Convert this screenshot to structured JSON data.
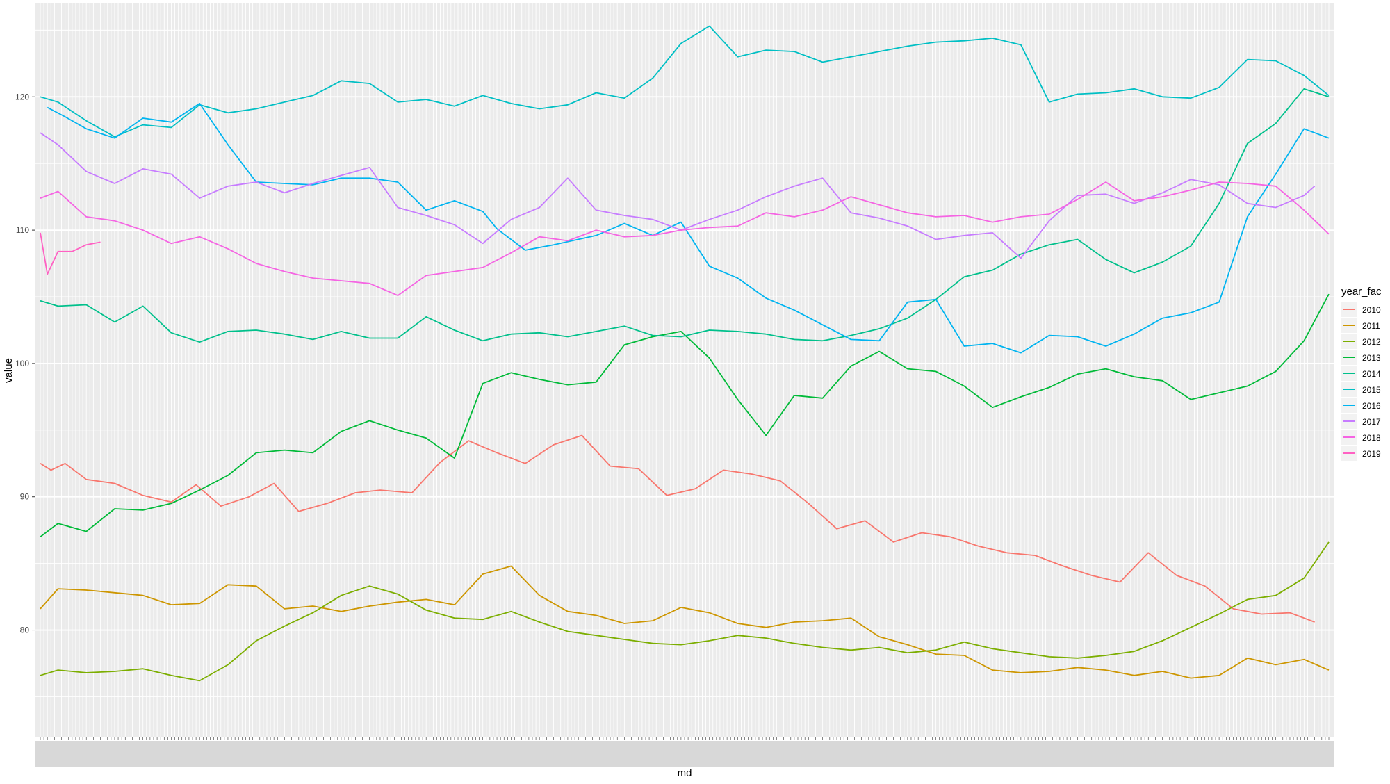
{
  "chart_data": {
    "type": "line",
    "xlabel": "md",
    "ylabel": "value",
    "x_ticks_note": "one tick per calendar month-day (01-01 .. 12-31); labels rendered vertically and unreadable",
    "x_range": [
      "01-01",
      "12-31"
    ],
    "ylim": [
      72,
      127
    ],
    "y_ticks": [
      80,
      90,
      100,
      110,
      120
    ],
    "grid": true,
    "legend": {
      "title": "year_fac",
      "position": "right"
    },
    "series": [
      {
        "name": "2010",
        "color": "#F8766D",
        "x": [
          1,
          4,
          8,
          14,
          22,
          30,
          38,
          45,
          52,
          60,
          67,
          74,
          82,
          90,
          97,
          106,
          114,
          122,
          130,
          138,
          146,
          154,
          162,
          170,
          178,
          186,
          194,
          202,
          210,
          218,
          226,
          234,
          242,
          250,
          258,
          266,
          274,
          282,
          290,
          298,
          306,
          314,
          322,
          330,
          338,
          346,
          354,
          361
        ],
        "y": [
          92.5,
          92.0,
          92.5,
          91.3,
          91.0,
          90.1,
          89.6,
          90.9,
          89.3,
          90.0,
          91.0,
          88.9,
          89.5,
          90.3,
          90.5,
          90.3,
          92.6,
          94.2,
          93.3,
          92.5,
          93.9,
          94.6,
          92.3,
          92.1,
          90.1,
          90.6,
          92.0,
          91.7,
          91.2,
          89.5,
          87.6,
          88.2,
          86.6,
          87.3,
          87.0,
          86.3,
          85.8,
          85.6,
          84.8,
          84.1,
          83.6,
          85.8,
          84.1,
          83.3,
          81.6,
          81.2,
          81.3,
          80.6
        ]
      },
      {
        "name": "2011",
        "color": "#CD9600",
        "x": [
          1,
          6,
          14,
          22,
          30,
          38,
          46,
          54,
          62,
          70,
          78,
          86,
          94,
          102,
          110,
          118,
          126,
          134,
          142,
          150,
          158,
          166,
          174,
          182,
          190,
          198,
          206,
          214,
          222,
          230,
          238,
          246,
          254,
          262,
          270,
          278,
          286,
          294,
          302,
          310,
          318,
          326,
          334,
          342,
          350,
          358,
          365
        ],
        "y": [
          81.6,
          83.1,
          83.0,
          82.8,
          82.6,
          81.9,
          82.0,
          83.4,
          83.3,
          81.6,
          81.8,
          81.4,
          81.8,
          82.1,
          82.3,
          81.9,
          84.2,
          84.8,
          82.6,
          81.4,
          81.1,
          80.5,
          80.7,
          81.7,
          81.3,
          80.5,
          80.2,
          80.6,
          80.7,
          80.9,
          79.5,
          78.9,
          78.2,
          78.1,
          77.0,
          76.8,
          76.9,
          77.2,
          77.0,
          76.6,
          76.9,
          76.4,
          76.6,
          77.9,
          77.4,
          77.8,
          77.0
        ]
      },
      {
        "name": "2012",
        "color": "#7CAE00",
        "x": [
          1,
          6,
          14,
          22,
          30,
          38,
          46,
          54,
          62,
          70,
          78,
          86,
          94,
          102,
          110,
          118,
          126,
          134,
          142,
          150,
          158,
          166,
          174,
          182,
          190,
          198,
          206,
          214,
          222,
          230,
          238,
          246,
          254,
          262,
          270,
          278,
          286,
          294,
          302,
          310,
          318,
          326,
          334,
          342,
          350,
          358,
          365
        ],
        "y": [
          76.6,
          77.0,
          76.8,
          76.9,
          77.1,
          76.6,
          76.2,
          77.4,
          79.2,
          80.3,
          81.3,
          82.6,
          83.3,
          82.7,
          81.5,
          80.9,
          80.8,
          81.4,
          80.6,
          79.9,
          79.6,
          79.3,
          79.0,
          78.9,
          79.2,
          79.6,
          79.4,
          79.0,
          78.7,
          78.5,
          78.7,
          78.3,
          78.5,
          79.1,
          78.6,
          78.3,
          78.0,
          77.9,
          78.1,
          78.4,
          79.2,
          80.2,
          81.2,
          82.3,
          82.6,
          83.9,
          86.6
        ]
      },
      {
        "name": "2013",
        "color": "#00BA38",
        "x": [
          1,
          6,
          14,
          22,
          30,
          38,
          46,
          54,
          62,
          70,
          78,
          86,
          94,
          102,
          110,
          118,
          126,
          134,
          142,
          150,
          158,
          166,
          174,
          182,
          190,
          198,
          206,
          214,
          222,
          230,
          238,
          246,
          254,
          262,
          270,
          278,
          286,
          294,
          302,
          310,
          318,
          326,
          334,
          342,
          350,
          358,
          365
        ],
        "y": [
          87.0,
          88.0,
          87.4,
          89.1,
          89.0,
          89.5,
          90.5,
          91.6,
          93.3,
          93.5,
          93.3,
          94.9,
          95.7,
          95.0,
          94.4,
          92.9,
          98.5,
          99.3,
          98.8,
          98.4,
          98.6,
          101.4,
          102.0,
          102.4,
          100.4,
          97.3,
          94.6,
          97.6,
          97.4,
          99.8,
          100.9,
          99.6,
          99.4,
          98.3,
          96.7,
          97.5,
          98.2,
          99.2,
          99.6,
          99.0,
          98.7,
          97.3,
          97.8,
          98.3,
          99.4,
          101.7,
          105.2
        ]
      },
      {
        "name": "2014",
        "color": "#00C08B",
        "x": [
          1,
          6,
          14,
          22,
          30,
          38,
          46,
          54,
          62,
          70,
          78,
          86,
          94,
          102,
          110,
          118,
          126,
          134,
          142,
          150,
          158,
          166,
          174,
          182,
          190,
          198,
          206,
          214,
          222,
          230,
          238,
          246,
          254,
          262,
          270,
          278,
          286,
          294,
          302,
          310,
          318,
          326,
          334,
          342,
          350,
          358,
          365
        ],
        "y": [
          104.7,
          104.3,
          104.4,
          103.1,
          104.3,
          102.3,
          101.6,
          102.4,
          102.5,
          102.2,
          101.8,
          102.4,
          101.9,
          101.9,
          103.5,
          102.5,
          101.7,
          102.2,
          102.3,
          102.0,
          102.4,
          102.8,
          102.1,
          102.0,
          102.5,
          102.4,
          102.2,
          101.8,
          101.7,
          102.1,
          102.6,
          103.4,
          104.8,
          106.5,
          107.0,
          108.2,
          108.9,
          109.3,
          107.8,
          106.8,
          107.6,
          108.8,
          112.0,
          116.5,
          118.0,
          120.6,
          120.0
        ]
      },
      {
        "name": "2015",
        "color": "#00BFC4",
        "x": [
          1,
          6,
          14,
          22,
          30,
          38,
          46,
          54,
          62,
          70,
          78,
          86,
          94,
          102,
          110,
          118,
          126,
          134,
          142,
          150,
          158,
          166,
          174,
          182,
          190,
          198,
          206,
          214,
          222,
          230,
          238,
          246,
          254,
          262,
          270,
          278,
          286,
          294,
          302,
          310,
          318,
          326,
          334,
          342,
          350,
          358,
          365
        ],
        "y": [
          120.0,
          119.6,
          118.2,
          117.0,
          117.9,
          117.7,
          119.4,
          118.8,
          119.1,
          119.6,
          120.1,
          121.2,
          121.0,
          119.6,
          119.8,
          119.3,
          120.1,
          119.5,
          119.1,
          119.4,
          120.3,
          119.9,
          121.4,
          124.0,
          125.3,
          123.0,
          123.5,
          123.4,
          122.6,
          123.0,
          123.4,
          123.8,
          124.1,
          124.2,
          124.4,
          123.9,
          119.6,
          120.2,
          120.3,
          120.6,
          120.0,
          119.9,
          120.7,
          122.8,
          122.7,
          121.6,
          120.1
        ]
      },
      {
        "name": "2016",
        "color": "#00B4F0",
        "x": [
          3,
          8,
          14,
          22,
          30,
          38,
          46,
          54,
          62,
          70,
          78,
          86,
          94,
          102,
          110,
          118,
          126,
          130,
          138,
          146,
          158,
          166,
          174,
          182,
          190,
          198,
          206,
          214,
          222,
          230,
          238,
          246,
          254,
          262,
          270,
          278,
          286,
          294,
          302,
          310,
          318,
          326,
          334,
          342,
          350,
          358,
          365
        ],
        "y": [
          119.2,
          118.5,
          117.6,
          116.9,
          118.4,
          118.1,
          119.5,
          116.4,
          113.6,
          113.5,
          113.4,
          113.9,
          113.9,
          113.6,
          111.5,
          112.2,
          111.4,
          110.1,
          108.5,
          108.9,
          109.6,
          110.5,
          109.6,
          110.6,
          107.3,
          106.4,
          104.9,
          104.0,
          102.9,
          101.8,
          101.7,
          104.6,
          104.8,
          101.3,
          101.5,
          100.8,
          102.1,
          102.0,
          101.3,
          102.2,
          103.4,
          103.8,
          104.6,
          111.0,
          114.2,
          117.6,
          116.9
        ]
      },
      {
        "name": "2017",
        "color": "#C77CFF",
        "x": [
          1,
          6,
          14,
          22,
          30,
          38,
          46,
          54,
          62,
          70,
          78,
          86,
          94,
          102,
          110,
          118,
          126,
          134,
          142,
          150,
          158,
          166,
          174,
          182,
          190,
          198,
          206,
          214,
          222,
          230,
          238,
          246,
          254,
          262,
          270,
          278,
          286,
          294,
          302,
          310,
          318,
          326,
          334,
          342,
          350,
          358,
          361
        ],
        "y": [
          117.3,
          116.4,
          114.4,
          113.5,
          114.6,
          114.2,
          112.4,
          113.3,
          113.6,
          112.8,
          113.5,
          114.1,
          114.7,
          111.7,
          111.1,
          110.4,
          109.0,
          110.8,
          111.7,
          113.9,
          111.5,
          111.1,
          110.8,
          110.0,
          110.8,
          111.5,
          112.5,
          113.3,
          113.9,
          111.3,
          110.9,
          110.3,
          109.3,
          109.6,
          109.8,
          107.9,
          110.7,
          112.6,
          112.7,
          112.0,
          112.8,
          113.8,
          113.4,
          112.0,
          111.7,
          112.6,
          113.3
        ]
      },
      {
        "name": "2018",
        "color": "#F564E3",
        "x": [
          1,
          6,
          14,
          22,
          30,
          38,
          46,
          54,
          62,
          70,
          78,
          86,
          94,
          102,
          110,
          118,
          126,
          134,
          142,
          150,
          158,
          166,
          174,
          182,
          190,
          198,
          206,
          214,
          222,
          230,
          238,
          246,
          254,
          262,
          270,
          278,
          286,
          294,
          302,
          310,
          318,
          326,
          334,
          342,
          350,
          358,
          365
        ],
        "y": [
          112.4,
          112.9,
          111.0,
          110.7,
          110.0,
          109.0,
          109.5,
          108.6,
          107.5,
          106.9,
          106.4,
          106.2,
          106.0,
          105.1,
          106.6,
          106.9,
          107.2,
          108.3,
          109.5,
          109.2,
          110.0,
          109.5,
          109.6,
          110.0,
          110.2,
          110.3,
          111.3,
          111.0,
          111.5,
          112.5,
          111.9,
          111.3,
          111.0,
          111.1,
          110.6,
          111.0,
          111.2,
          112.3,
          113.6,
          112.2,
          112.5,
          113.0,
          113.6,
          113.5,
          113.3,
          111.5,
          109.7
        ]
      },
      {
        "name": "2019",
        "color": "#FF61C3",
        "x": [
          1,
          3,
          6,
          10,
          14,
          18
        ],
        "y": [
          109.8,
          106.7,
          108.4,
          108.4,
          108.9,
          109.1
        ]
      }
    ]
  }
}
